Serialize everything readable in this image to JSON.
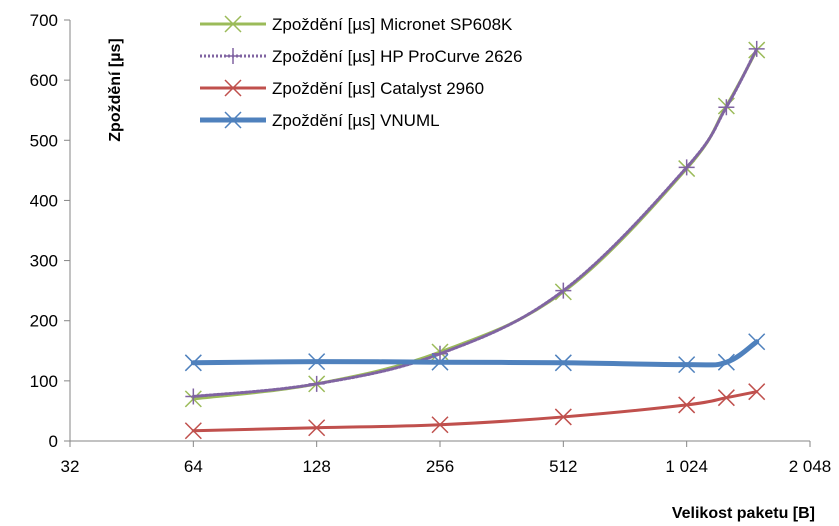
{
  "chart_data": {
    "type": "line",
    "title": "",
    "xlabel": "Velikost paketu [B]",
    "ylabel": "Zpoždění [µs]",
    "x_scale": "log2",
    "xlim": [
      32,
      2048
    ],
    "ylim": [
      0,
      700
    ],
    "x_ticks": [
      32,
      64,
      128,
      256,
      512,
      1024,
      2048
    ],
    "x_tick_labels": [
      "32",
      "64",
      "128",
      "256",
      "512",
      "1 024",
      "2 048"
    ],
    "y_ticks": [
      0,
      100,
      200,
      300,
      400,
      500,
      600,
      700
    ],
    "y_tick_labels": [
      "0",
      "100",
      "200",
      "300",
      "400",
      "500",
      "600",
      "700"
    ],
    "grid": false,
    "legend_position": "top-center",
    "series": [
      {
        "name": "Zpoždění [µs] Micronet SP608K",
        "color": "#9BBB59",
        "marker": "x",
        "line_style": "solid",
        "x": [
          64,
          128,
          256,
          512,
          1024,
          1280,
          1518
        ],
        "y": [
          70,
          95,
          148,
          248,
          453,
          557,
          650
        ]
      },
      {
        "name": "Zpoždění [µs] HP ProCurve 2626",
        "color": "#8064A2",
        "marker": "plus",
        "line_style": "dotted",
        "x": [
          64,
          128,
          256,
          512,
          1024,
          1280,
          1518
        ],
        "y": [
          74,
          95,
          145,
          250,
          455,
          555,
          652
        ]
      },
      {
        "name": "Zpoždění [µs] Catalyst 2960",
        "color": "#C0504D",
        "marker": "x",
        "line_style": "solid",
        "x": [
          64,
          128,
          256,
          512,
          1024,
          1280,
          1518
        ],
        "y": [
          17,
          22,
          27,
          40,
          60,
          72,
          82
        ]
      },
      {
        "name": "Zpoždění [µs] VNUML",
        "color": "#4F81BD",
        "marker": "x",
        "line_style": "solid-thick",
        "x": [
          64,
          128,
          256,
          512,
          1024,
          1280,
          1518
        ],
        "y": [
          130,
          132,
          131,
          130,
          127,
          131,
          165
        ]
      }
    ]
  }
}
